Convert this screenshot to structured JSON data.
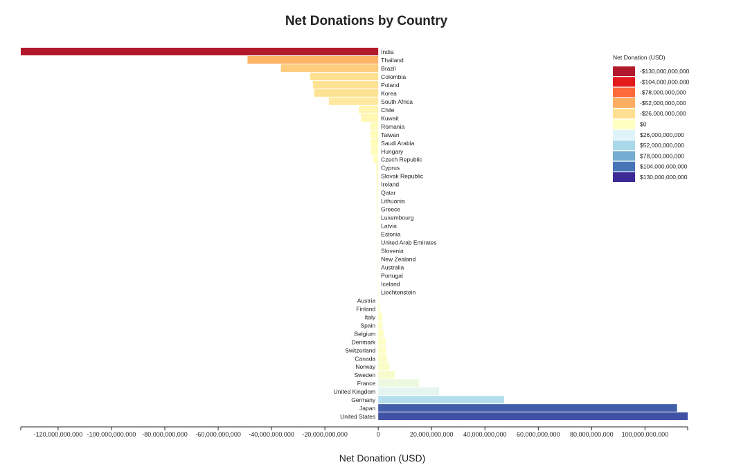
{
  "chart_data": {
    "type": "bar",
    "orientation": "horizontal",
    "title": "Net Donations by Country",
    "xlabel": "Net Donation (USD)",
    "ylabel": "",
    "xlim": [
      -134000000000,
      116000000000
    ],
    "x_ticks": [
      {
        "value": -120000000000,
        "label": "-120,000,000,000"
      },
      {
        "value": -100000000000,
        "label": "-100,000,000,000"
      },
      {
        "value": -80000000000,
        "label": "-80,000,000,000"
      },
      {
        "value": -60000000000,
        "label": "-60,000,000,000"
      },
      {
        "value": -40000000000,
        "label": "-40,000,000,000"
      },
      {
        "value": -20000000000,
        "label": "-20,000,000,000"
      },
      {
        "value": 0,
        "label": "0"
      },
      {
        "value": 20000000000,
        "label": "20,000,000,000"
      },
      {
        "value": 40000000000,
        "label": "40,000,000,000"
      },
      {
        "value": 60000000000,
        "label": "60,000,000,000"
      },
      {
        "value": 80000000000,
        "label": "80,000,000,000"
      },
      {
        "value": 100000000000,
        "label": "100,000,000,000"
      }
    ],
    "categories": [
      "India",
      "Thailand",
      "Brazil",
      "Colombia",
      "Poland",
      "Korea",
      "South Africa",
      "Chile",
      "Kuwait",
      "Romania",
      "Taiwan",
      "Saudi Arabia",
      "Hungary",
      "Czech Republic",
      "Cyprus",
      "Slovak Republic",
      "Ireland",
      "Qatar",
      "Lithuania",
      "Greece",
      "Luxembourg",
      "Latvia",
      "Estonia",
      "United Arab Emirates",
      "Slovenia",
      "New Zealand",
      "Australia",
      "Portugal",
      "Iceland",
      "Liechtenstein",
      "Austria",
      "Finland",
      "Italy",
      "Spain",
      "Belgium",
      "Denmark",
      "Switzerland",
      "Canada",
      "Norway",
      "Sweden",
      "France",
      "United Kingdom",
      "Germany",
      "Japan",
      "United States"
    ],
    "values": [
      -134000000000,
      -49000000000,
      -36500000000,
      -25500000000,
      -24500000000,
      -24000000000,
      -18500000000,
      -7300000000,
      -6500000000,
      -3000000000,
      -2900000000,
      -2800000000,
      -2700000000,
      -1900000000,
      -700000000,
      -600000000,
      -500000000,
      -400000000,
      -350000000,
      -300000000,
      -250000000,
      -200000000,
      -180000000,
      -160000000,
      -140000000,
      -120000000,
      -100000000,
      -80000000,
      -60000000,
      -40000000,
      100000000,
      500000000,
      1500000000,
      1600000000,
      2000000000,
      2800000000,
      2900000000,
      3300000000,
      4200000000,
      6300000000,
      15300000000,
      22800000000,
      47200000000,
      112000000000,
      116000000000
    ],
    "legend": {
      "title": "Net Donation (USD)",
      "position": "top-right",
      "items": [
        {
          "label": "-$130,000,000,000",
          "color": "#b2182b"
        },
        {
          "label": "-$104,000,000,000",
          "color": "#e31a1c"
        },
        {
          "label": "-$78,000,000,000",
          "color": "#fd6a3c"
        },
        {
          "label": "-$52,000,000,000",
          "color": "#fdae61"
        },
        {
          "label": "-$26,000,000,000",
          "color": "#fee090"
        },
        {
          "label": "$0",
          "color": "#ffffbf"
        },
        {
          "label": "$26,000,000,000",
          "color": "#e0f3f8"
        },
        {
          "label": "$52,000,000,000",
          "color": "#abd9e9"
        },
        {
          "label": "$78,000,000,000",
          "color": "#74add1"
        },
        {
          "label": "$104,000,000,000",
          "color": "#4575b4"
        },
        {
          "label": "$130,000,000,000",
          "color": "#3b2a96"
        }
      ]
    },
    "grid": false
  }
}
